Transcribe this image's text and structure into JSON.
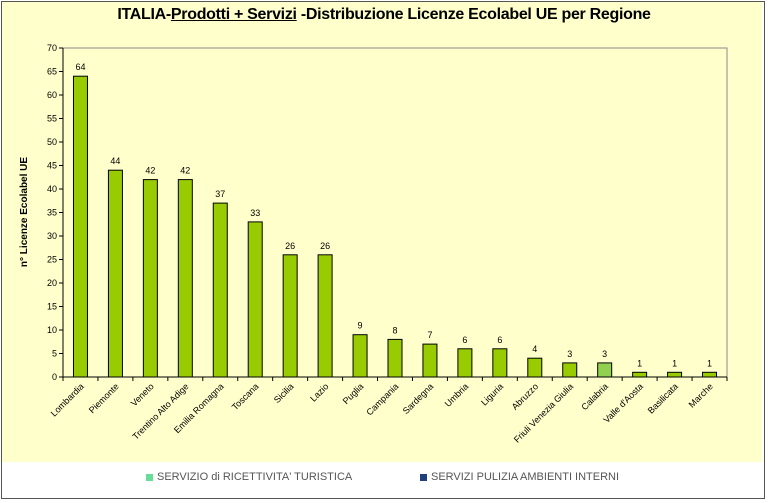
{
  "chart_data": {
    "type": "bar",
    "title_parts": [
      "ITALIA-",
      "Prodotti + Servizi",
      " -Distribuzione Licenze Ecolabel UE per Regione"
    ],
    "ylabel": "n° Licenze  Ecolabel  UE",
    "xlabel": "",
    "ylim": [
      0,
      70
    ],
    "yticks": [
      0,
      5,
      10,
      15,
      20,
      25,
      30,
      35,
      40,
      45,
      50,
      55,
      60,
      65,
      70
    ],
    "grid": false,
    "categories": [
      "Lombardia",
      "Piemonte",
      "Veneto",
      "Trentino Alto Adige",
      "Emilia Romagna",
      "Toscana",
      "Sicilia",
      "Lazio",
      "Puglia",
      "Campania",
      "Sardegna",
      "Umbria",
      "Liguria",
      "Abruzzo",
      "Friuli Venezia Giulia",
      "Calabria",
      "Valle d'Aosta",
      "Basilicata",
      "Marche"
    ],
    "values": [
      64,
      44,
      42,
      42,
      37,
      33,
      26,
      26,
      9,
      8,
      7,
      6,
      6,
      4,
      3,
      3,
      1,
      1,
      1
    ],
    "bar_colors": [
      "#99cc00",
      "#99cc00",
      "#99cc00",
      "#99cc00",
      "#99cc00",
      "#99cc00",
      "#99cc00",
      "#99cc00",
      "#99cc00",
      "#99cc00",
      "#99cc00",
      "#99cc00",
      "#99cc00",
      "#99cc00",
      "#99cc00",
      "#92d050",
      "#99cc00",
      "#99cc00",
      "#99cc00"
    ],
    "legend_position": "bottom",
    "legend": [
      {
        "name": "SERVIZIO di RICETTIVITA' TURISTICA",
        "color": "#66dd99"
      },
      {
        "name": "SERVIZI PULIZIA AMBIENTI INTERNI",
        "color": "#1f3f7f"
      }
    ],
    "background": "#ffffcc"
  }
}
